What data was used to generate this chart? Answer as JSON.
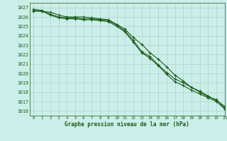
{
  "title": "Graphe pression niveau de la mer (hPa)",
  "bg_color": "#cceee8",
  "grid_color": "#aad4ce",
  "line_color": "#1a5c1a",
  "xlim": [
    -0.5,
    23
  ],
  "ylim": [
    1015.5,
    1027.5
  ],
  "yticks": [
    1016,
    1017,
    1018,
    1019,
    1020,
    1021,
    1022,
    1023,
    1024,
    1025,
    1026,
    1027
  ],
  "xticks": [
    0,
    1,
    2,
    3,
    4,
    5,
    6,
    7,
    8,
    9,
    10,
    11,
    12,
    13,
    14,
    15,
    16,
    17,
    18,
    19,
    20,
    21,
    22,
    23
  ],
  "series": [
    [
      1026.6,
      1026.6,
      1026.5,
      1026.2,
      1026.0,
      1026.0,
      1026.0,
      1025.9,
      1025.8,
      1025.7,
      1025.2,
      1024.7,
      1023.8,
      1023.1,
      1022.2,
      1021.5,
      1020.7,
      1019.8,
      1019.2,
      1018.5,
      1018.0,
      1017.5,
      1017.2,
      1016.3
    ],
    [
      1026.7,
      1026.6,
      1026.2,
      1025.9,
      1025.8,
      1025.8,
      1025.7,
      1025.7,
      1025.6,
      1025.5,
      1025.0,
      1024.4,
      1023.3,
      1022.2,
      1021.6,
      1020.8,
      1019.9,
      1019.1,
      1018.7,
      1018.2,
      1017.8,
      1017.4,
      1017.0,
      1016.2
    ],
    [
      1026.8,
      1026.7,
      1026.3,
      1026.0,
      1025.9,
      1025.9,
      1025.8,
      1025.8,
      1025.7,
      1025.6,
      1025.15,
      1024.5,
      1023.5,
      1022.3,
      1021.8,
      1020.9,
      1020.1,
      1019.4,
      1019.0,
      1018.5,
      1018.1,
      1017.6,
      1017.1,
      1016.5
    ]
  ]
}
